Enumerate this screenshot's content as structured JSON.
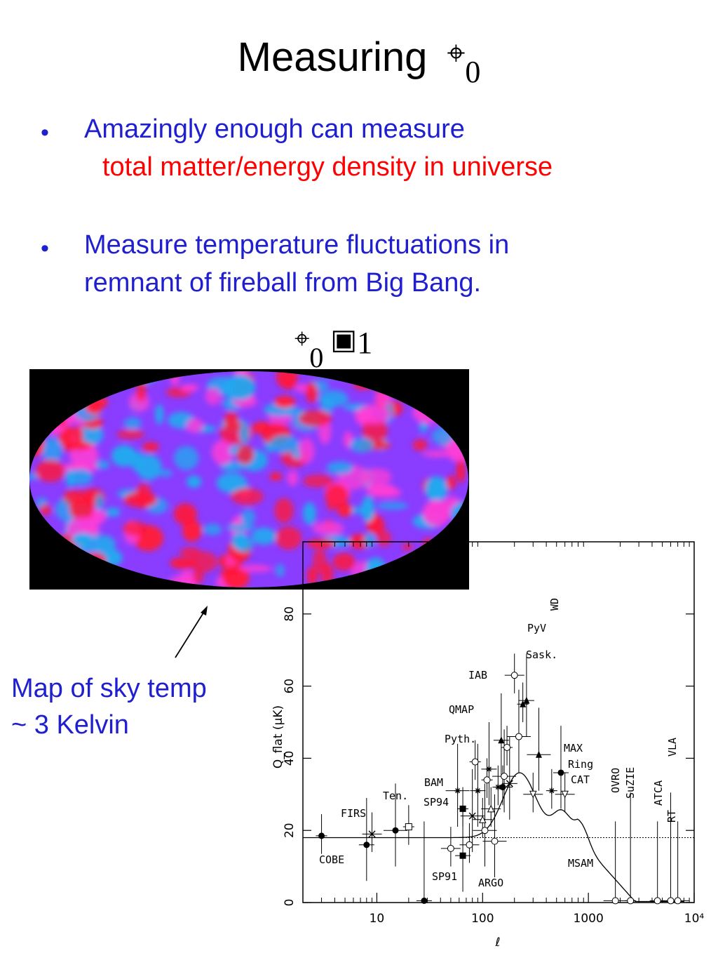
{
  "title": {
    "text": "Measuring",
    "symbol": "⌖",
    "subscript": "0"
  },
  "bullets": [
    {
      "marker": "•",
      "line1": "Amazingly enough can measure",
      "line2": "total matter/energy density in universe"
    },
    {
      "marker": "•",
      "line1": "Measure  temperature fluctuations in",
      "line2": "remnant of fireball from Big Bang."
    }
  ],
  "equation": {
    "symbol": "⌖",
    "subscript": "0",
    "operator_icon": "box-glyph",
    "operator": "▣",
    "value": "1"
  },
  "sky_map": {
    "caption_line1": "Map of sky temp",
    "caption_line2": "~ 3 Kelvin"
  },
  "colors": {
    "bullet_text": "#1f1fd0",
    "highlight": "#ff0000",
    "sky_red": "#ff1a3a",
    "sky_blue": "#21a9f0",
    "sky_purple": "#8a3dff",
    "sky_magenta": "#ff3dd6"
  },
  "chart_data": {
    "type": "scatter",
    "xscale": "log",
    "xlim": [
      2,
      10000
    ],
    "ylim": [
      0,
      100
    ],
    "xlabel": "ℓ",
    "ylabel": "Q_flat (μK)",
    "x_ticks": [
      "10",
      "100",
      "1000",
      "10⁴"
    ],
    "y_ticks": [
      "0",
      "20",
      "40",
      "60",
      "80"
    ],
    "reference_line_y": 18,
    "experiments": [
      "COBE",
      "FIRS",
      "Ten.",
      "SP94",
      "BAM",
      "SP91",
      "ARGO",
      "Pyth.",
      "QMAP",
      "IAB",
      "Sask.",
      "PyV",
      "WD",
      "MAX",
      "Ring",
      "CAT",
      "MSAM",
      "OVRO",
      "SuZIE",
      "ATCA",
      "RT",
      "VLA"
    ],
    "points": [
      {
        "x": 3,
        "y": 18.5,
        "m": "dot"
      },
      {
        "x": 8,
        "y": 16,
        "m": "dot"
      },
      {
        "x": 9,
        "y": 19,
        "m": "cross"
      },
      {
        "x": 15,
        "y": 20,
        "m": "dot"
      },
      {
        "x": 20,
        "y": 21,
        "m": "square"
      },
      {
        "x": 28,
        "y": 0.5,
        "m": "dot"
      },
      {
        "x": 50,
        "y": 15,
        "m": "circle"
      },
      {
        "x": 58,
        "y": 31,
        "m": "star"
      },
      {
        "x": 65,
        "y": 26,
        "m": "square-filled"
      },
      {
        "x": 65,
        "y": 13,
        "m": "square-filled"
      },
      {
        "x": 75,
        "y": 16,
        "m": "circle"
      },
      {
        "x": 80,
        "y": 24,
        "m": "cross"
      },
      {
        "x": 85,
        "y": 39,
        "m": "circle"
      },
      {
        "x": 90,
        "y": 31,
        "m": "star"
      },
      {
        "x": 100,
        "y": 23,
        "m": "triangle"
      },
      {
        "x": 105,
        "y": 20,
        "m": "circle"
      },
      {
        "x": 110,
        "y": 34,
        "m": "circle"
      },
      {
        "x": 115,
        "y": 37,
        "m": "star"
      },
      {
        "x": 120,
        "y": 26,
        "m": "triangle"
      },
      {
        "x": 130,
        "y": 17,
        "m": "circle"
      },
      {
        "x": 140,
        "y": 32,
        "m": "star"
      },
      {
        "x": 150,
        "y": 45,
        "m": "triangle-filled"
      },
      {
        "x": 155,
        "y": 32,
        "m": "dot"
      },
      {
        "x": 160,
        "y": 35,
        "m": "circle"
      },
      {
        "x": 170,
        "y": 43,
        "m": "circle"
      },
      {
        "x": 180,
        "y": 33,
        "m": "cross"
      },
      {
        "x": 200,
        "y": 63,
        "m": "circle"
      },
      {
        "x": 220,
        "y": 46,
        "m": "circle"
      },
      {
        "x": 240,
        "y": 55,
        "m": "triangle-filled"
      },
      {
        "x": 260,
        "y": 56,
        "m": "triangle-filled"
      },
      {
        "x": 300,
        "y": 30,
        "m": "triangle-down"
      },
      {
        "x": 340,
        "y": 41,
        "m": "triangle-filled"
      },
      {
        "x": 450,
        "y": 31,
        "m": "star"
      },
      {
        "x": 550,
        "y": 36,
        "m": "dot"
      },
      {
        "x": 600,
        "y": 30,
        "m": "triangle-down"
      },
      {
        "x": 1800,
        "y": 0.5,
        "m": "circle"
      },
      {
        "x": 2500,
        "y": 0.5,
        "m": "circle"
      },
      {
        "x": 4500,
        "y": 0.5,
        "m": "circle"
      },
      {
        "x": 6000,
        "y": 0.5,
        "m": "circle"
      },
      {
        "x": 7000,
        "y": 0.5,
        "m": "circle"
      }
    ]
  }
}
